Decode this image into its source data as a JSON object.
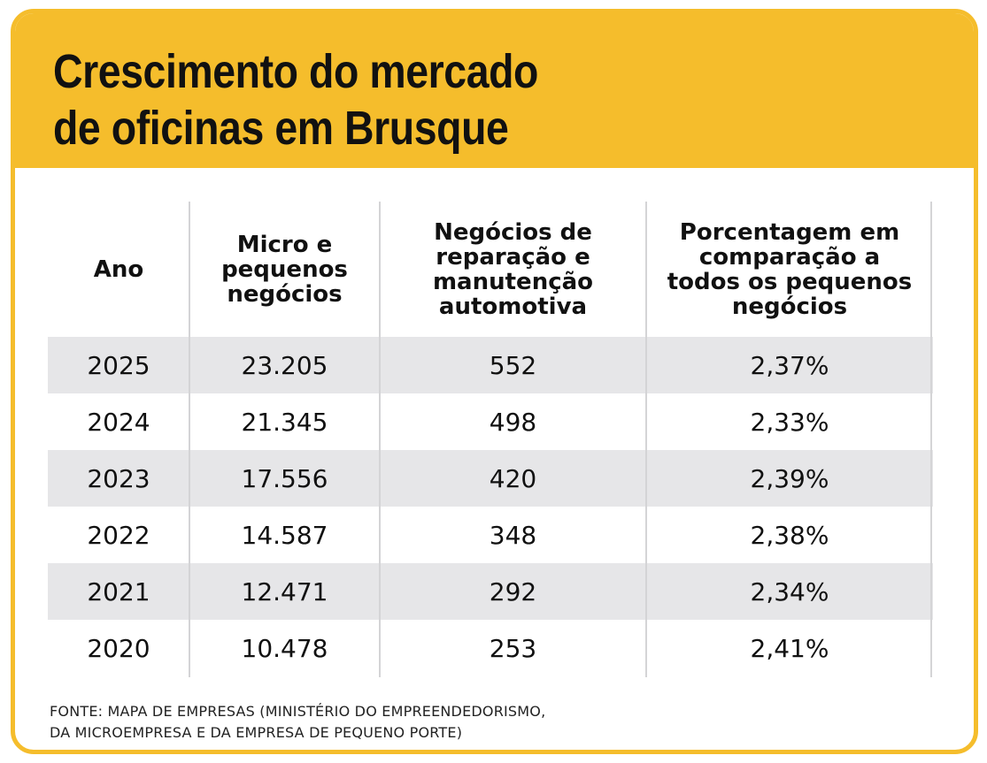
{
  "title": {
    "line1": "Crescimento do mercado",
    "line2": "de oficinas em Brusque"
  },
  "colors": {
    "accent": "#f5bd2c",
    "row_shade": "#e6e6e8",
    "text": "#111111"
  },
  "chart_data": {
    "type": "table",
    "title": "Crescimento do mercado de oficinas em Brusque",
    "columns": [
      "Ano",
      "Micro e\npequenos\nnegócios",
      "Negócios de\nreparação e\nmanutenção\nautomotiva",
      "Porcentagem em\ncomparação a\ntodos os pequenos\nnegócios"
    ],
    "rows": [
      [
        "2025",
        "23.205",
        "552",
        "2,37%"
      ],
      [
        "2024",
        "21.345",
        "498",
        "2,33%"
      ],
      [
        "2023",
        "17.556",
        "420",
        "2,39%"
      ],
      [
        "2022",
        "14.587",
        "348",
        "2,38%"
      ],
      [
        "2021",
        "12.471",
        "292",
        "2,34%"
      ],
      [
        "2020",
        "10.478",
        "253",
        "2,41%"
      ]
    ]
  },
  "source": {
    "line1": "FONTE: MAPA DE EMPRESAS (MINISTÉRIO DO EMPREENDEDORISMO,",
    "line2": "DA MICROEMPRESA E DA EMPRESA DE PEQUENO PORTE)"
  }
}
